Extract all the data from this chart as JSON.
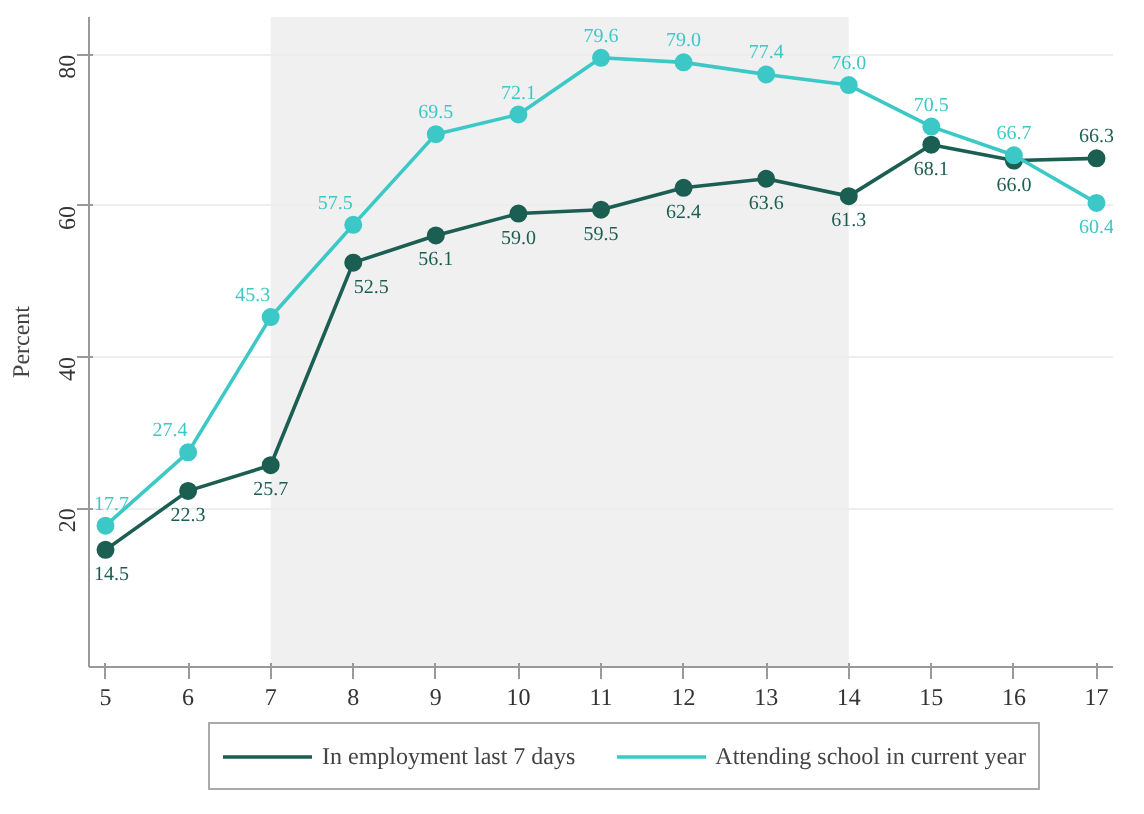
{
  "chart_data": {
    "type": "line",
    "ylabel": "Percent",
    "x": [
      5,
      6,
      7,
      8,
      9,
      10,
      11,
      12,
      13,
      14,
      15,
      16,
      17
    ],
    "series": [
      {
        "name": "In employment last 7 days",
        "color": "#1b5e52",
        "values": [
          14.5,
          22.3,
          25.7,
          52.5,
          56.1,
          59.0,
          59.5,
          62.4,
          63.6,
          61.3,
          68.1,
          66.0,
          66.3
        ],
        "value_labels": [
          "14.5",
          "22.3",
          "25.7",
          "52.5",
          "56.1",
          "59.0",
          "59.5",
          "62.4",
          "63.6",
          "61.3",
          "68.1",
          "66.0",
          "66.3"
        ]
      },
      {
        "name": "Attending school in current year",
        "color": "#3cc8c6",
        "values": [
          17.7,
          27.4,
          45.3,
          57.5,
          69.5,
          72.1,
          79.6,
          79.0,
          77.4,
          76.0,
          70.5,
          66.7,
          60.4
        ],
        "value_labels": [
          "17.7",
          "27.4",
          "45.3",
          "57.5",
          "69.5",
          "72.1",
          "79.6",
          "79.0",
          "77.4",
          "76.0",
          "70.5",
          "66.7",
          "60.4"
        ]
      }
    ],
    "xlim": [
      4.8,
      17.2
    ],
    "ylim": [
      -1,
      85
    ],
    "xticks": [
      5,
      6,
      7,
      8,
      9,
      10,
      11,
      12,
      13,
      14,
      15,
      16,
      17
    ],
    "yticks": [
      20,
      40,
      60,
      80
    ],
    "bands": [
      {
        "axis": "x",
        "from": 7,
        "to": 14,
        "color": "#ececec"
      }
    ],
    "grid": "y",
    "legend": "bottom",
    "marker": "circle",
    "line_style": "solid"
  }
}
